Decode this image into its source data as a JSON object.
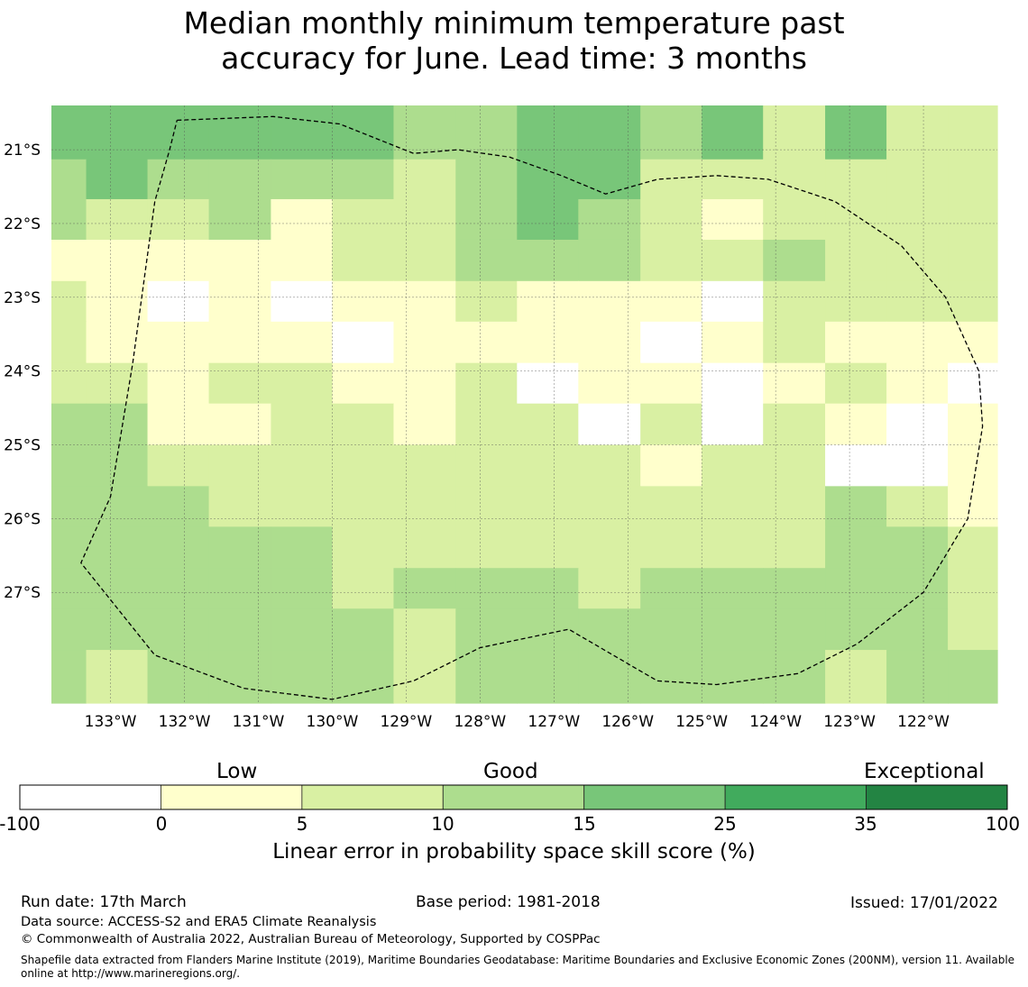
{
  "title_line1": "Median monthly minimum temperature past",
  "title_line2": "accuracy for June. Lead time: 3 months",
  "map": {
    "lon_range": [
      -133.8,
      -121.0
    ],
    "lat_range": [
      -28.5,
      -20.4
    ],
    "lon_labels": [
      "133°W",
      "132°W",
      "131°W",
      "130°W",
      "129°W",
      "128°W",
      "127°W",
      "126°W",
      "125°W",
      "124°W",
      "123°W",
      "122°W"
    ],
    "lat_labels": [
      "21°S",
      "22°S",
      "23°S",
      "24°S",
      "25°S",
      "26°S",
      "27°S"
    ],
    "eez_boundary": [
      [
        -132.1,
        -20.6
      ],
      [
        -130.8,
        -20.55
      ],
      [
        -129.9,
        -20.65
      ],
      [
        -128.9,
        -21.05
      ],
      [
        -128.3,
        -21.0
      ],
      [
        -127.6,
        -21.1
      ],
      [
        -126.9,
        -21.35
      ],
      [
        -126.3,
        -21.6
      ],
      [
        -125.6,
        -21.4
      ],
      [
        -124.8,
        -21.35
      ],
      [
        -124.1,
        -21.4
      ],
      [
        -123.2,
        -21.7
      ],
      [
        -122.3,
        -22.3
      ],
      [
        -121.7,
        -23.0
      ],
      [
        -121.25,
        -24.0
      ],
      [
        -121.2,
        -24.75
      ],
      [
        -121.4,
        -26.0
      ],
      [
        -122.0,
        -27.0
      ],
      [
        -122.9,
        -27.7
      ],
      [
        -123.7,
        -28.1
      ],
      [
        -124.8,
        -28.25
      ],
      [
        -125.6,
        -28.2
      ],
      [
        -126.8,
        -27.5
      ],
      [
        -128.0,
        -27.75
      ],
      [
        -128.9,
        -28.2
      ],
      [
        -130.0,
        -28.45
      ],
      [
        -131.2,
        -28.3
      ],
      [
        -132.4,
        -27.85
      ],
      [
        -133.4,
        -26.6
      ],
      [
        -133.0,
        -25.7
      ],
      [
        -132.7,
        -23.9
      ],
      [
        -132.4,
        -21.7
      ],
      [
        -132.2,
        -21.0
      ],
      [
        -132.1,
        -20.6
      ]
    ],
    "grid": {
      "lon_edges": [
        -133.8,
        -133.33,
        -132.5,
        -131.67,
        -130.83,
        -130.0,
        -129.17,
        -128.33,
        -127.5,
        -126.67,
        -125.83,
        -125.0,
        -124.17,
        -123.33,
        -122.5,
        -121.67,
        -121.0
      ],
      "lat_edges": [
        -20.4,
        -21.13,
        -21.67,
        -22.22,
        -22.78,
        -23.33,
        -23.89,
        -24.44,
        -25.0,
        -25.56,
        -26.11,
        -26.67,
        -27.22,
        -27.78,
        -28.5
      ],
      "values": [
        [
          20,
          20,
          20,
          20,
          20,
          20,
          12,
          12,
          20,
          20,
          12,
          20,
          8,
          20,
          8,
          8
        ],
        [
          12,
          20,
          12,
          12,
          12,
          12,
          8,
          12,
          20,
          20,
          8,
          8,
          8,
          8,
          8,
          8
        ],
        [
          12,
          8,
          8,
          12,
          3,
          8,
          8,
          12,
          20,
          12,
          8,
          3,
          8,
          8,
          8,
          8
        ],
        [
          3,
          3,
          3,
          3,
          3,
          8,
          8,
          12,
          12,
          12,
          8,
          8,
          12,
          8,
          8,
          8
        ],
        [
          8,
          3,
          -50,
          3,
          -50,
          3,
          3,
          8,
          3,
          3,
          3,
          -50,
          8,
          8,
          8,
          8
        ],
        [
          8,
          3,
          3,
          3,
          3,
          -50,
          3,
          3,
          3,
          3,
          -50,
          3,
          8,
          3,
          3,
          3
        ],
        [
          8,
          8,
          3,
          8,
          8,
          3,
          3,
          8,
          -50,
          3,
          3,
          -50,
          3,
          8,
          3,
          -50
        ],
        [
          12,
          12,
          3,
          3,
          8,
          8,
          3,
          8,
          8,
          -50,
          8,
          -50,
          8,
          3,
          -50,
          3
        ],
        [
          12,
          12,
          8,
          8,
          8,
          8,
          8,
          8,
          8,
          8,
          3,
          8,
          8,
          -50,
          -50,
          3
        ],
        [
          12,
          12,
          12,
          8,
          8,
          8,
          8,
          8,
          8,
          8,
          8,
          8,
          8,
          12,
          8,
          3
        ],
        [
          12,
          12,
          12,
          12,
          12,
          8,
          8,
          8,
          8,
          8,
          8,
          8,
          8,
          12,
          12,
          8
        ],
        [
          12,
          12,
          12,
          12,
          12,
          8,
          12,
          12,
          12,
          8,
          12,
          12,
          12,
          12,
          12,
          8
        ],
        [
          12,
          12,
          12,
          12,
          12,
          12,
          8,
          12,
          12,
          12,
          12,
          12,
          12,
          12,
          12,
          8
        ],
        [
          12,
          8,
          12,
          12,
          12,
          12,
          8,
          12,
          12,
          12,
          12,
          12,
          12,
          8,
          12,
          12
        ]
      ]
    }
  },
  "colorbar": {
    "word_low": "Low",
    "word_good": "Good",
    "word_exceptional": "Exceptional",
    "ticks": [
      "-100",
      "0",
      "5",
      "10",
      "15",
      "25",
      "35",
      "100"
    ],
    "colors": [
      "#ffffff",
      "#ffffcc",
      "#d9f0a3",
      "#addd8e",
      "#78c679",
      "#41ab5d",
      "#238443"
    ],
    "label": "Linear error in probability space skill score (%)"
  },
  "footer": {
    "run_date": "Run date: 17th March",
    "base_period": "Base period: 1981-2018",
    "issued": "Issued: 17/01/2022",
    "data_source": "Data source: ACCESS-S2 and ERA5 Climate Reanalysis",
    "copyright": "© Commonwealth of Australia 2022, Australian Bureau of Meteorology, Supported by COSPPac",
    "shapefile": "Shapefile data extracted from Flanders Marine Institute (2019), Maritime Boundaries Geodatabase: Maritime Boundaries and Exclusive Economic Zones (200NM), version 11. Available online at http://www.marineregions.org/."
  }
}
